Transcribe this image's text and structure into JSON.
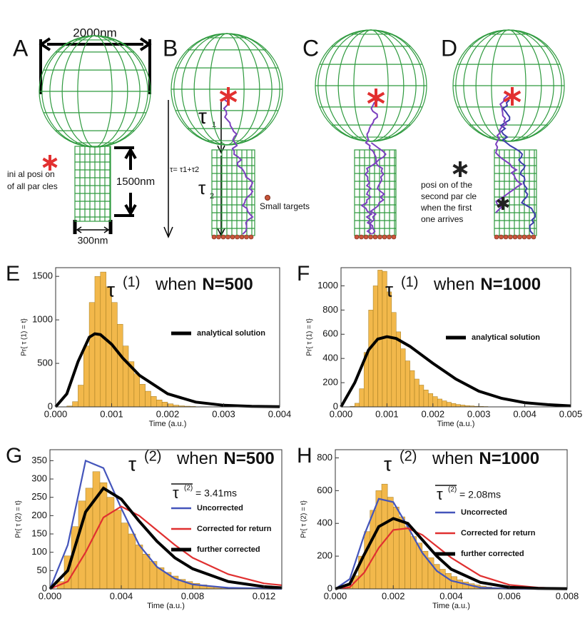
{
  "diagram": {
    "panels": [
      "A",
      "B",
      "C",
      "D"
    ],
    "width_label": "2000nm",
    "height_label": "1500nm",
    "neck_label": "300nm",
    "initial_label": [
      "ini al posi on",
      "of all par cles"
    ],
    "tau1": "τ",
    "tau1_sub": "1",
    "tau_total": "τ= τ1+τ2",
    "tau2": "τ",
    "tau2_sub": "2",
    "targets_label": "Small targets",
    "second_label": [
      "posi on of the",
      "second par cle",
      "when the first",
      "one arrives"
    ]
  },
  "chart_data": [
    {
      "type": "histogram",
      "panel": "E",
      "symbol": "τ",
      "superscript": "(1)",
      "title": "when",
      "title_bold": "N=500",
      "xlabel": "Time (a.u.)",
      "ylabel": "Pr{ τ (1) = t}",
      "bins": [
        0.0002,
        0.0003,
        0.0004,
        0.0005,
        0.0006,
        0.0007,
        0.0008,
        0.0009,
        0.001,
        0.0011,
        0.0012,
        0.0013,
        0.0014,
        0.0015,
        0.0016,
        0.0017,
        0.0018,
        0.0019,
        0.002,
        0.0021,
        0.0022,
        0.0023,
        0.0024,
        0.0025
      ],
      "values": [
        10,
        60,
        250,
        700,
        1200,
        1500,
        1550,
        1380,
        1200,
        950,
        700,
        520,
        380,
        260,
        180,
        120,
        80,
        55,
        35,
        20,
        12,
        8,
        5
      ],
      "color": "#f2b84b",
      "curves": [
        {
          "name": "analytical solution",
          "color": "#000000",
          "x": [
            0,
            0.0002,
            0.0004,
            0.0006,
            0.0007,
            0.0008,
            0.001,
            0.0012,
            0.0015,
            0.002,
            0.0025,
            0.003,
            0.0035,
            0.004
          ],
          "values": [
            0,
            150,
            520,
            800,
            840,
            830,
            720,
            560,
            360,
            150,
            55,
            18,
            6,
            2
          ]
        }
      ],
      "xlim": [
        0,
        0.004
      ],
      "ylim": [
        0,
        1600
      ],
      "xticks": [
        {
          "value": 0,
          "label": "0.000"
        },
        0.001,
        0.002,
        0.003,
        0.004
      ],
      "yticks": [
        0,
        500,
        1000,
        1500
      ]
    },
    {
      "type": "histogram",
      "panel": "F",
      "symbol": "τ",
      "superscript": "(1)",
      "title": "when",
      "title_bold": "N=1000",
      "xlabel": "Time (a.u.)",
      "ylabel": "Pr{ τ (1) = t}",
      "bins": [
        0.0002,
        0.0003,
        0.0004,
        0.0005,
        0.0006,
        0.0007,
        0.0008,
        0.0009,
        0.001,
        0.0011,
        0.0012,
        0.0013,
        0.0014,
        0.0015,
        0.0016,
        0.0017,
        0.0018,
        0.0019,
        0.002,
        0.0021,
        0.0022,
        0.0023,
        0.0024,
        0.0025,
        0.0026,
        0.0027,
        0.0028,
        0.0029,
        0.003,
        0.0031,
        0.0032
      ],
      "values": [
        5,
        30,
        150,
        450,
        800,
        1000,
        1130,
        1120,
        950,
        780,
        620,
        480,
        380,
        300,
        230,
        180,
        140,
        110,
        85,
        65,
        50,
        38,
        28,
        20,
        15,
        10,
        8,
        5,
        4,
        3
      ],
      "color": "#f2b84b",
      "curves": [
        {
          "name": "analytical solution",
          "color": "#000000",
          "x": [
            0,
            0.0003,
            0.0006,
            0.0008,
            0.001,
            0.0012,
            0.0015,
            0.002,
            0.0025,
            0.003,
            0.0035,
            0.004,
            0.0045,
            0.005
          ],
          "values": [
            0,
            200,
            470,
            560,
            580,
            565,
            500,
            360,
            230,
            130,
            70,
            35,
            18,
            8
          ]
        }
      ],
      "xlim": [
        0,
        0.005
      ],
      "ylim": [
        0,
        1150
      ],
      "xticks": [
        {
          "value": 0,
          "label": "0.000"
        },
        0.001,
        0.002,
        0.003,
        0.004,
        0.005
      ],
      "yticks": [
        0,
        200,
        400,
        600,
        800,
        1000
      ]
    },
    {
      "type": "histogram",
      "panel": "G",
      "symbol": "τ",
      "superscript": "(2)",
      "title": "when",
      "title_bold": "N=500",
      "xlabel": "Time (a.u.)",
      "ylabel": "Pr{ τ (2) = t}",
      "mean_symbol": "τ",
      "mean_superscript": "(2)",
      "mean_value": "= 3.41ms",
      "bins": [
        0.0004,
        0.0008,
        0.0012,
        0.0016,
        0.002,
        0.0024,
        0.0028,
        0.0032,
        0.0036,
        0.004,
        0.0044,
        0.0048,
        0.0052,
        0.0056,
        0.006,
        0.0064,
        0.0068,
        0.0072,
        0.0076,
        0.008,
        0.0084,
        0.0088,
        0.0092,
        0.0096,
        0.01,
        0.0104
      ],
      "values": [
        20,
        90,
        170,
        240,
        275,
        320,
        290,
        250,
        215,
        180,
        150,
        120,
        95,
        75,
        58,
        45,
        35,
        26,
        20,
        15,
        11,
        8,
        6,
        4,
        3
      ],
      "color": "#f2b84b",
      "curves": [
        {
          "name": "Uncorrected",
          "color": "#4455bb",
          "x": [
            0,
            0.001,
            0.002,
            0.003,
            0.004,
            0.005,
            0.006,
            0.007,
            0.008,
            0.01,
            0.012,
            0.013
          ],
          "values": [
            0,
            120,
            350,
            330,
            220,
            120,
            60,
            28,
            12,
            3,
            1,
            0
          ]
        },
        {
          "name": "Corrected for return",
          "color": "#e03030",
          "x": [
            0,
            0.001,
            0.002,
            0.003,
            0.004,
            0.005,
            0.006,
            0.007,
            0.008,
            0.01,
            0.012,
            0.013
          ],
          "values": [
            0,
            20,
            100,
            195,
            225,
            200,
            160,
            120,
            85,
            40,
            15,
            10
          ]
        },
        {
          "name": "further corrected",
          "color": "#000000",
          "x": [
            0,
            0.001,
            0.002,
            0.003,
            0.004,
            0.005,
            0.006,
            0.007,
            0.008,
            0.01,
            0.012,
            0.013
          ],
          "values": [
            0,
            50,
            210,
            275,
            245,
            185,
            130,
            85,
            55,
            20,
            6,
            3
          ]
        }
      ],
      "xlim": [
        0,
        0.013
      ],
      "ylim": [
        0,
        380
      ],
      "xticks": [
        {
          "value": 0,
          "label": "0.000"
        },
        0.004,
        0.008,
        0.012
      ],
      "yticks": [
        0,
        50,
        100,
        150,
        200,
        250,
        300,
        350
      ]
    },
    {
      "type": "histogram",
      "panel": "H",
      "symbol": "τ",
      "superscript": "(2)",
      "title": "when",
      "title_bold": "N=1000",
      "xlabel": "Time (a.u.)",
      "ylabel": "Pr{ τ (2) = t}",
      "mean_symbol": "τ",
      "mean_superscript": "(2)",
      "mean_value": "= 2.08ms",
      "bins": [
        0.0004,
        0.0006,
        0.0008,
        0.001,
        0.0012,
        0.0014,
        0.0016,
        0.0018,
        0.002,
        0.0022,
        0.0024,
        0.0026,
        0.0028,
        0.003,
        0.0032,
        0.0034,
        0.0036,
        0.0038,
        0.004,
        0.0042,
        0.0044,
        0.0046,
        0.0048,
        0.005,
        0.0052,
        0.0054,
        0.0056,
        0.0058,
        0.006,
        0.0062
      ],
      "values": [
        20,
        80,
        200,
        350,
        480,
        600,
        640,
        560,
        500,
        440,
        380,
        320,
        280,
        230,
        190,
        150,
        120,
        95,
        75,
        55,
        42,
        32,
        24,
        17,
        12,
        8,
        6,
        4,
        3
      ],
      "color": "#f2b84b",
      "curves": [
        {
          "name": "Uncorrected",
          "color": "#4455bb",
          "x": [
            0,
            0.0005,
            0.001,
            0.0015,
            0.002,
            0.0025,
            0.003,
            0.0035,
            0.004,
            0.005,
            0.006,
            0.007,
            0.008
          ],
          "values": [
            0,
            60,
            330,
            550,
            530,
            380,
            220,
            110,
            50,
            8,
            1,
            0,
            0
          ]
        },
        {
          "name": "Corrected for return",
          "color": "#e03030",
          "x": [
            0,
            0.0005,
            0.001,
            0.0015,
            0.002,
            0.0025,
            0.003,
            0.0035,
            0.004,
            0.005,
            0.006,
            0.007,
            0.008
          ],
          "values": [
            0,
            10,
            100,
            250,
            360,
            370,
            330,
            260,
            190,
            80,
            25,
            8,
            2
          ]
        },
        {
          "name": "further corrected",
          "color": "#000000",
          "x": [
            0,
            0.0005,
            0.001,
            0.0015,
            0.002,
            0.0025,
            0.003,
            0.0035,
            0.004,
            0.005,
            0.006,
            0.007,
            0.008
          ],
          "values": [
            0,
            30,
            210,
            380,
            430,
            400,
            300,
            200,
            120,
            40,
            10,
            3,
            1
          ]
        }
      ],
      "xlim": [
        0,
        0.008
      ],
      "ylim": [
        0,
        850
      ],
      "xticks": [
        {
          "value": 0,
          "label": "0.000"
        },
        0.002,
        0.004,
        0.006,
        0.008
      ],
      "yticks": [
        0,
        200,
        400,
        600,
        800
      ]
    }
  ]
}
